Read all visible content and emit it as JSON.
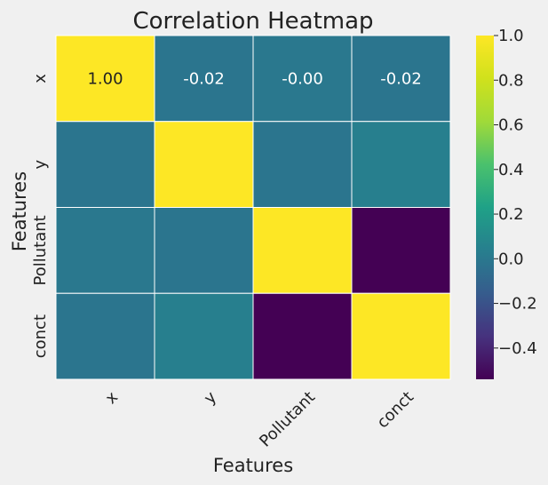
{
  "chart_data": {
    "type": "heatmap",
    "title": "Correlation Heatmap",
    "xlabel": "Features",
    "ylabel": "Features",
    "x_categories": [
      "x",
      "y",
      "Pollutant",
      "conct"
    ],
    "y_categories": [
      "x",
      "y",
      "Pollutant",
      "conct"
    ],
    "values": [
      [
        1.0,
        -0.02,
        -0.0,
        -0.02
      ],
      [
        -0.02,
        1.0,
        -0.02,
        0.04
      ],
      [
        -0.0,
        -0.02,
        1.0,
        -0.54
      ],
      [
        -0.02,
        0.04,
        -0.54,
        1.0
      ]
    ],
    "annotated_cells": [
      {
        "row": 0,
        "col": 0,
        "text": "1.00"
      },
      {
        "row": 0,
        "col": 1,
        "text": "-0.02"
      },
      {
        "row": 0,
        "col": 2,
        "text": "-0.00"
      },
      {
        "row": 0,
        "col": 3,
        "text": "-0.02"
      }
    ],
    "colormap": "viridis",
    "colorbar": {
      "range": [
        -0.54,
        1.0
      ],
      "ticks": [
        1.0,
        0.8,
        0.6,
        0.4,
        0.2,
        0.0,
        -0.2,
        -0.4
      ],
      "tick_labels": [
        "1.0",
        "0.8",
        "0.6",
        "0.4",
        "0.2",
        "0.0",
        "−0.2",
        "−0.4"
      ]
    },
    "colors": {
      "background": "#f0f0f0",
      "cell_border": "#ffffff",
      "annotation_light": "#ffffff",
      "annotation_dark": "#222222"
    }
  }
}
